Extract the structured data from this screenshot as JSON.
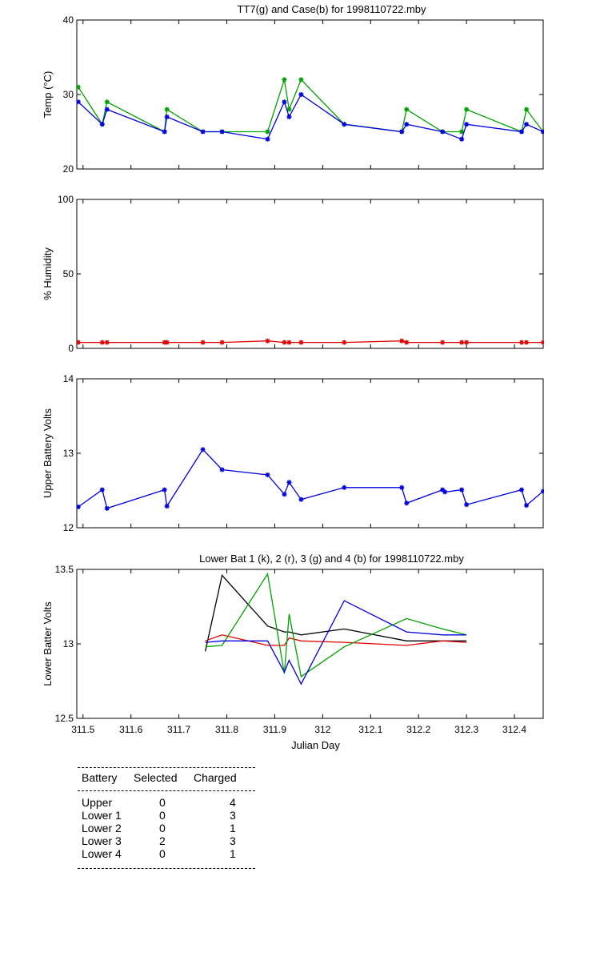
{
  "chart_data": [
    {
      "type": "line",
      "title": "TT7(g) and Case(b) for 1998110722.mby",
      "xlabel": "",
      "ylabel": "Temp  (°C)",
      "xlim": [
        311.487,
        312.46
      ],
      "ylim": [
        20,
        40
      ],
      "yticks": [
        20,
        30,
        40
      ],
      "grid": false,
      "series": [
        {
          "name": "TT7",
          "color": "#00a000",
          "markers": true,
          "x": [
            311.49,
            311.54,
            311.55,
            311.67,
            311.675,
            311.75,
            311.79,
            311.885,
            311.92,
            311.93,
            311.955,
            312.045,
            312.165,
            312.175,
            312.25,
            312.29,
            312.3,
            312.415,
            312.425,
            312.46
          ],
          "y": [
            31,
            26,
            29,
            25,
            28,
            25,
            25,
            25,
            32,
            28,
            32,
            26,
            25,
            28,
            25,
            25,
            28,
            25,
            28,
            25
          ]
        },
        {
          "name": "Case",
          "color": "#0000e0",
          "markers": true,
          "x": [
            311.49,
            311.54,
            311.55,
            311.67,
            311.675,
            311.75,
            311.79,
            311.885,
            311.92,
            311.93,
            311.955,
            312.045,
            312.165,
            312.175,
            312.25,
            312.29,
            312.3,
            312.415,
            312.425,
            312.46
          ],
          "y": [
            29,
            26,
            28,
            25,
            27,
            25,
            25,
            24,
            29,
            27,
            30,
            26,
            25,
            26,
            25,
            24,
            26,
            25,
            26,
            25
          ]
        }
      ]
    },
    {
      "type": "line",
      "title": "",
      "xlabel": "",
      "ylabel": "% Humidity",
      "xlim": [
        311.487,
        312.46
      ],
      "ylim": [
        0,
        100
      ],
      "yticks": [
        0,
        50,
        100
      ],
      "grid": false,
      "series": [
        {
          "color": "#e00000",
          "markers": true,
          "x": [
            311.49,
            311.54,
            311.55,
            311.67,
            311.675,
            311.75,
            311.79,
            311.885,
            311.92,
            311.93,
            311.955,
            312.045,
            312.165,
            312.175,
            312.25,
            312.29,
            312.3,
            312.415,
            312.425,
            312.46
          ],
          "y": [
            4,
            4,
            4,
            4,
            4,
            4,
            4,
            5,
            4,
            4,
            4,
            4,
            5,
            4,
            4,
            4,
            4,
            4,
            4,
            4
          ]
        }
      ]
    },
    {
      "type": "line",
      "title": "",
      "xlabel": "",
      "ylabel": "Upper Battery Volts",
      "xlim": [
        311.487,
        312.46
      ],
      "ylim": [
        12,
        14
      ],
      "yticks": [
        12,
        13,
        14
      ],
      "grid": false,
      "series": [
        {
          "color": "#0000e0",
          "markers": true,
          "x": [
            311.49,
            311.54,
            311.55,
            311.67,
            311.675,
            311.75,
            311.79,
            311.885,
            311.92,
            311.93,
            311.955,
            312.045,
            312.165,
            312.175,
            312.25,
            312.255,
            312.29,
            312.3,
            312.415,
            312.425,
            312.46
          ],
          "y": [
            12.28,
            12.51,
            12.26,
            12.51,
            12.29,
            13.05,
            12.78,
            12.71,
            12.45,
            12.61,
            12.38,
            12.54,
            12.54,
            12.33,
            12.51,
            12.48,
            12.51,
            12.31,
            12.51,
            12.3,
            12.49
          ]
        }
      ]
    },
    {
      "type": "line",
      "title": "Lower Bat 1 (k), 2 (r), 3 (g) and 4 (b) for 1998110722.mby",
      "xlabel": "Julian Day",
      "ylabel": "Lower Batter Volts",
      "xlim": [
        311.487,
        312.46
      ],
      "ylim": [
        12.5,
        13.5
      ],
      "yticks": [
        12.5,
        13,
        13.5
      ],
      "xticks": [
        311.5,
        311.6,
        311.7,
        311.8,
        311.9,
        312,
        312.1,
        312.2,
        312.3,
        312.4
      ],
      "xticklabels": [
        "311.5",
        "311.6",
        "311.7",
        "311.8",
        "311.9",
        "312",
        "312.1",
        "312.2",
        "312.3",
        "312.4"
      ],
      "grid": false,
      "series": [
        {
          "name": "Lower Bat 1",
          "color": "#000000",
          "markers": false,
          "x": [
            311.755,
            311.79,
            311.885,
            311.92,
            311.93,
            311.955,
            312.045,
            312.175,
            312.25,
            312.3
          ],
          "y": [
            12.95,
            13.46,
            13.12,
            13.08,
            13.08,
            13.06,
            13.1,
            13.02,
            13.02,
            13.02
          ]
        },
        {
          "name": "Lower Bat 2",
          "color": "#e00000",
          "markers": false,
          "x": [
            311.755,
            311.79,
            311.885,
            311.92,
            311.93,
            311.955,
            312.045,
            312.175,
            312.25,
            312.3
          ],
          "y": [
            13.02,
            13.06,
            12.99,
            12.99,
            13.04,
            13.02,
            13.01,
            12.99,
            13.02,
            13.01
          ]
        },
        {
          "name": "Lower Bat 3",
          "color": "#00a000",
          "markers": false,
          "x": [
            311.755,
            311.79,
            311.885,
            311.92,
            311.93,
            311.955,
            312.045,
            312.175,
            312.25,
            312.3
          ],
          "y": [
            12.98,
            12.99,
            13.47,
            12.8,
            13.2,
            12.78,
            12.98,
            13.17,
            13.1,
            13.06
          ]
        },
        {
          "name": "Lower Bat 4",
          "color": "#0000e0",
          "markers": false,
          "x": [
            311.755,
            311.79,
            311.885,
            311.92,
            311.93,
            311.955,
            312.045,
            312.175,
            312.25,
            312.3
          ],
          "y": [
            13.01,
            13.02,
            13.02,
            12.81,
            12.89,
            12.73,
            13.29,
            13.08,
            13.06,
            13.06
          ]
        }
      ]
    }
  ],
  "summary_table": {
    "headers": [
      "Battery",
      "Selected",
      "Charged"
    ],
    "rows": [
      [
        "Upper",
        "0",
        "4"
      ],
      [
        "Lower 1",
        "0",
        "3"
      ],
      [
        "Lower 2",
        "0",
        "1"
      ],
      [
        "Lower 3",
        "2",
        "3"
      ],
      [
        "Lower 4",
        "0",
        "1"
      ]
    ]
  }
}
